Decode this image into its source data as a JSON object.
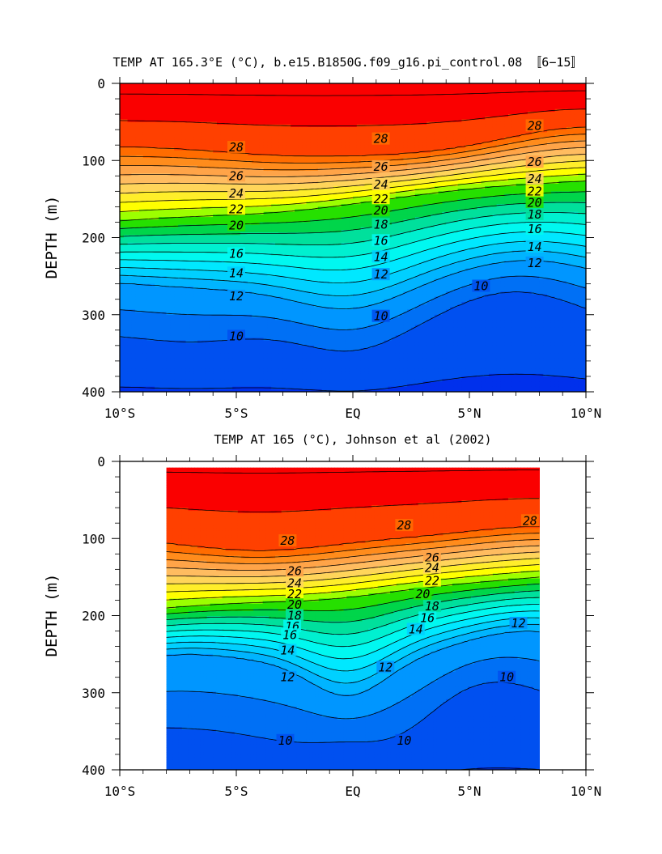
{
  "chart_data": [
    {
      "type": "heatmap",
      "title": "TEMP AT 165.3°E (°C), b.e15.B1850G.f09_g16.pi_control.08 〚6−15〛",
      "xlabel": "",
      "ylabel": "DEPTH (m)",
      "xlim": [
        -10,
        10
      ],
      "ylim": [
        400,
        0
      ],
      "x_ticks": [
        -10,
        -5,
        0,
        5,
        10
      ],
      "x_tick_labels": [
        "10°S",
        "5°S",
        "EQ",
        "5°N",
        "10°N"
      ],
      "y_ticks": [
        0,
        100,
        200,
        300,
        400
      ],
      "y_tick_labels": [
        "0",
        "100",
        "200",
        "300",
        "400"
      ],
      "data_extent_lat": [
        -10,
        10
      ],
      "contour_interval": 1,
      "contour_labels": [
        {
          "text": "28",
          "lat": -5.0,
          "depth": 83
        },
        {
          "text": "28",
          "lat": 1.2,
          "depth": 72
        },
        {
          "text": "28",
          "lat": 7.8,
          "depth": 55
        },
        {
          "text": "26",
          "lat": -5.0,
          "depth": 120
        },
        {
          "text": "26",
          "lat": 1.2,
          "depth": 108
        },
        {
          "text": "26",
          "lat": 7.8,
          "depth": 102
        },
        {
          "text": "24",
          "lat": -5.0,
          "depth": 143
        },
        {
          "text": "24",
          "lat": 1.2,
          "depth": 131
        },
        {
          "text": "24",
          "lat": 7.8,
          "depth": 124
        },
        {
          "text": "22",
          "lat": -5.0,
          "depth": 163
        },
        {
          "text": "22",
          "lat": 1.2,
          "depth": 150
        },
        {
          "text": "22",
          "lat": 7.8,
          "depth": 140
        },
        {
          "text": "20",
          "lat": -5.0,
          "depth": 184
        },
        {
          "text": "20",
          "lat": 1.2,
          "depth": 165
        },
        {
          "text": "20",
          "lat": 7.8,
          "depth": 155
        },
        {
          "text": "18",
          "lat": 1.2,
          "depth": 183
        },
        {
          "text": "18",
          "lat": 7.8,
          "depth": 170
        },
        {
          "text": "16",
          "lat": -5.0,
          "depth": 221
        },
        {
          "text": "16",
          "lat": 1.2,
          "depth": 204
        },
        {
          "text": "16",
          "lat": 7.8,
          "depth": 189
        },
        {
          "text": "14",
          "lat": -5.0,
          "depth": 246
        },
        {
          "text": "14",
          "lat": 1.2,
          "depth": 225
        },
        {
          "text": "14",
          "lat": 7.8,
          "depth": 212
        },
        {
          "text": "12",
          "lat": -5.0,
          "depth": 276
        },
        {
          "text": "12",
          "lat": 1.2,
          "depth": 248
        },
        {
          "text": "12",
          "lat": 7.8,
          "depth": 233
        },
        {
          "text": "10",
          "lat": -5.0,
          "depth": 328
        },
        {
          "text": "10",
          "lat": 1.2,
          "depth": 302
        },
        {
          "text": "10",
          "lat": 5.5,
          "depth": 263
        }
      ]
    },
    {
      "type": "heatmap",
      "title": "TEMP AT 165 (°C), Johnson et al (2002)",
      "xlabel": "",
      "ylabel": "DEPTH (m)",
      "xlim": [
        -10,
        10
      ],
      "ylim": [
        400,
        0
      ],
      "x_ticks": [
        -10,
        -5,
        0,
        5,
        10
      ],
      "x_tick_labels": [
        "10°S",
        "5°S",
        "EQ",
        "5°N",
        "10°N"
      ],
      "y_ticks": [
        0,
        100,
        200,
        300,
        400
      ],
      "y_tick_labels": [
        "0",
        "100",
        "200",
        "300",
        "400"
      ],
      "data_extent_lat": [
        -8,
        8
      ],
      "contour_interval": 1,
      "contour_labels": [
        {
          "text": "28",
          "lat": -2.8,
          "depth": 103
        },
        {
          "text": "28",
          "lat": 2.2,
          "depth": 83
        },
        {
          "text": "28",
          "lat": 7.6,
          "depth": 77
        },
        {
          "text": "26",
          "lat": -2.5,
          "depth": 142
        },
        {
          "text": "26",
          "lat": 3.4,
          "depth": 125
        },
        {
          "text": "24",
          "lat": -2.5,
          "depth": 158
        },
        {
          "text": "24",
          "lat": 3.4,
          "depth": 138
        },
        {
          "text": "22",
          "lat": -2.5,
          "depth": 172
        },
        {
          "text": "22",
          "lat": 3.4,
          "depth": 155
        },
        {
          "text": "20",
          "lat": -2.5,
          "depth": 186
        },
        {
          "text": "20",
          "lat": 3.0,
          "depth": 172
        },
        {
          "text": "18",
          "lat": -2.5,
          "depth": 200
        },
        {
          "text": "18",
          "lat": 3.4,
          "depth": 188
        },
        {
          "text": "16",
          "lat": -2.6,
          "depth": 214
        },
        {
          "text": "16",
          "lat": 3.2,
          "depth": 203
        },
        {
          "text": "16",
          "lat": -2.7,
          "depth": 225
        },
        {
          "text": "14",
          "lat": 2.7,
          "depth": 218
        },
        {
          "text": "14",
          "lat": -2.8,
          "depth": 245
        },
        {
          "text": "12",
          "lat": 7.1,
          "depth": 210
        },
        {
          "text": "12",
          "lat": -2.8,
          "depth": 280
        },
        {
          "text": "12",
          "lat": 1.4,
          "depth": 267
        },
        {
          "text": "10",
          "lat": 6.6,
          "depth": 280
        },
        {
          "text": "10",
          "lat": -2.9,
          "depth": 362
        },
        {
          "text": "10",
          "lat": 2.2,
          "depth": 362
        }
      ]
    }
  ]
}
